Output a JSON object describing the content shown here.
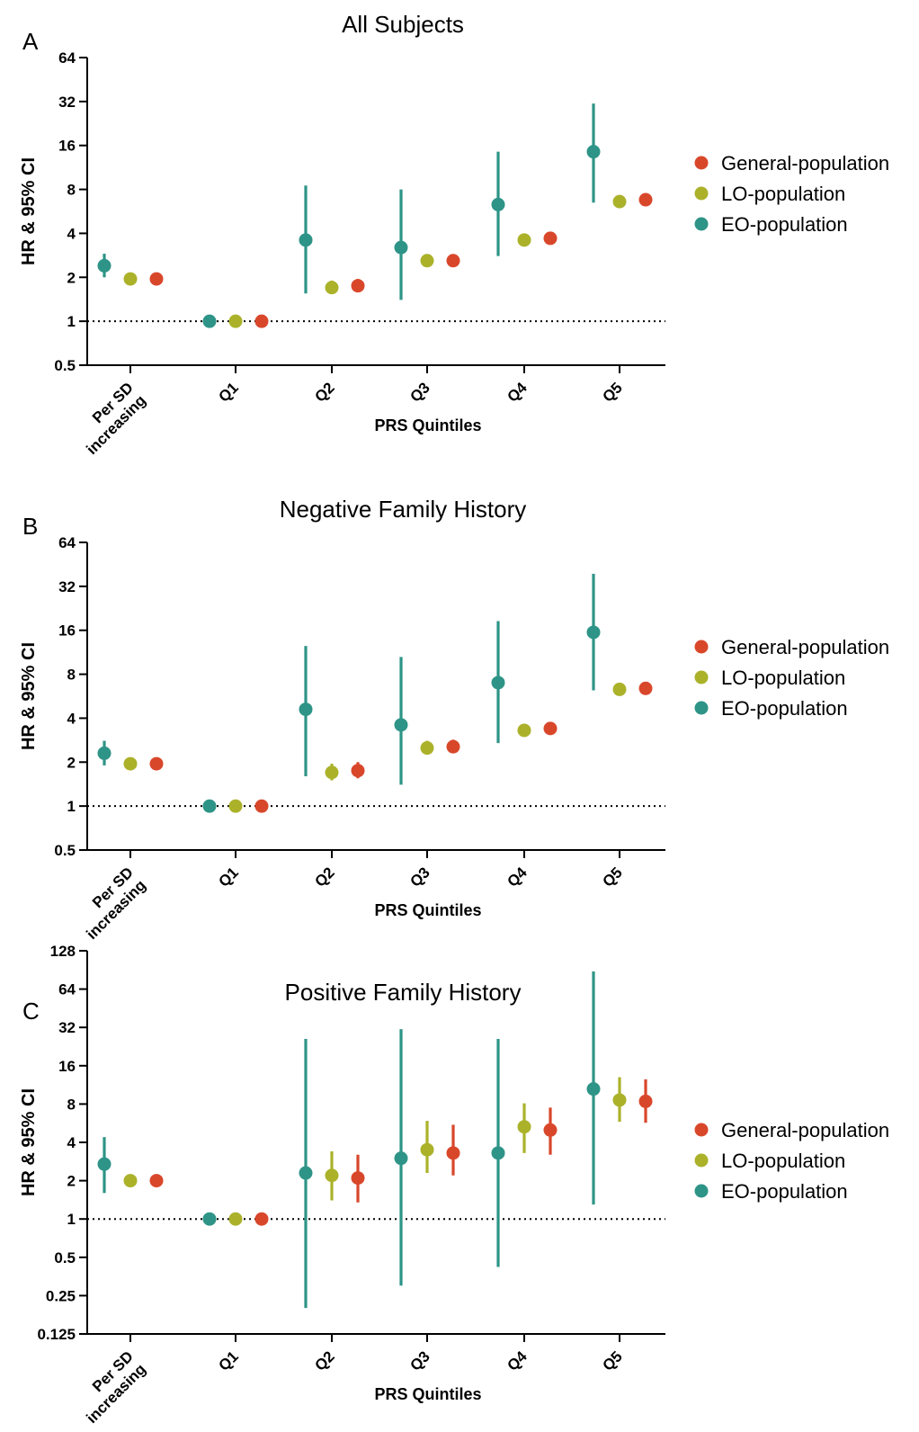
{
  "colors": {
    "General-population": "#d9472b",
    "LO-population": "#abb22a",
    "EO-population": "#2e9487"
  },
  "chart_data": [
    {
      "panel": "A",
      "type": "scatter",
      "title": "All Subjects",
      "xlabel": "PRS Quintiles",
      "ylabel": "HR & 95% CI",
      "yscale": "log2",
      "ylim": [
        0.5,
        64
      ],
      "yticks": [
        "0.5",
        "1",
        "2",
        "4",
        "8",
        "16",
        "32",
        "64"
      ],
      "yticks_values": [
        0.5,
        1,
        2,
        4,
        8,
        16,
        32,
        64
      ],
      "categories": [
        "Per SD increasing",
        "Q1",
        "Q2",
        "Q3",
        "Q4",
        "Q5"
      ],
      "reference_line": 1,
      "legend_position": "right",
      "legend": [
        "General-population",
        "LO-population",
        "EO-population"
      ],
      "series": [
        {
          "name": "EO-population",
          "hr": [
            2.4,
            1,
            3.6,
            3.2,
            6.3,
            14.5
          ],
          "lo": [
            2.0,
            1,
            1.55,
            1.4,
            2.8,
            6.5
          ],
          "hi": [
            2.9,
            1,
            8.5,
            8.0,
            14.5,
            31
          ]
        },
        {
          "name": "LO-population",
          "hr": [
            1.95,
            1,
            1.7,
            2.6,
            3.6,
            6.6
          ],
          "lo": [
            1.9,
            1,
            1.55,
            2.4,
            3.35,
            6.2
          ],
          "hi": [
            2.0,
            1,
            1.9,
            2.85,
            3.9,
            7.1
          ]
        },
        {
          "name": "General-population",
          "hr": [
            1.95,
            1,
            1.75,
            2.6,
            3.7,
            6.8
          ],
          "lo": [
            1.9,
            1,
            1.6,
            2.4,
            3.45,
            6.4
          ],
          "hi": [
            2.0,
            1,
            1.95,
            2.85,
            4.0,
            7.2
          ]
        }
      ]
    },
    {
      "panel": "B",
      "type": "scatter",
      "title": "Negative Family History",
      "xlabel": "PRS Quintiles",
      "ylabel": "HR & 95% CI",
      "yscale": "log2",
      "ylim": [
        0.5,
        64
      ],
      "yticks": [
        "0.5",
        "1",
        "2",
        "4",
        "8",
        "16",
        "32",
        "64"
      ],
      "yticks_values": [
        0.5,
        1,
        2,
        4,
        8,
        16,
        32,
        64
      ],
      "categories": [
        "Per SD increasing",
        "Q1",
        "Q2",
        "Q3",
        "Q4",
        "Q5"
      ],
      "reference_line": 1,
      "legend_position": "right",
      "legend": [
        "General-population",
        "LO-population",
        "EO-population"
      ],
      "series": [
        {
          "name": "EO-population",
          "hr": [
            2.3,
            1,
            4.6,
            3.6,
            7.0,
            15.5
          ],
          "lo": [
            1.9,
            1,
            1.6,
            1.4,
            2.7,
            6.2
          ],
          "hi": [
            2.8,
            1,
            12.5,
            10.5,
            18.5,
            39
          ]
        },
        {
          "name": "LO-population",
          "hr": [
            1.95,
            1,
            1.7,
            2.5,
            3.3,
            6.3
          ],
          "lo": [
            1.9,
            1,
            1.5,
            2.25,
            3.0,
            5.8
          ],
          "hi": [
            2.0,
            1,
            1.95,
            2.8,
            3.65,
            6.8
          ]
        },
        {
          "name": "General-population",
          "hr": [
            1.95,
            1,
            1.75,
            2.55,
            3.4,
            6.4
          ],
          "lo": [
            1.9,
            1,
            1.55,
            2.3,
            3.1,
            5.9
          ],
          "hi": [
            2.0,
            1,
            2.0,
            2.85,
            3.75,
            6.9
          ]
        }
      ]
    },
    {
      "panel": "C",
      "type": "scatter",
      "title": "Positive Family History",
      "xlabel": "PRS Quintiles",
      "ylabel": "HR & 95% CI",
      "yscale": "log2",
      "ylim": [
        0.125,
        128
      ],
      "yticks": [
        "0.125",
        "0.25",
        "0.5",
        "1",
        "2",
        "4",
        "8",
        "16",
        "32",
        "64",
        "128"
      ],
      "yticks_values": [
        0.125,
        0.25,
        0.5,
        1,
        2,
        4,
        8,
        16,
        32,
        64,
        128
      ],
      "categories": [
        "Per SD increasing",
        "Q1",
        "Q2",
        "Q3",
        "Q4",
        "Q5"
      ],
      "reference_line": 1,
      "legend_position": "right",
      "legend": [
        "General-population",
        "LO-population",
        "EO-population"
      ],
      "series": [
        {
          "name": "EO-population",
          "hr": [
            2.7,
            1,
            2.3,
            3.0,
            3.3,
            10.5
          ],
          "lo": [
            1.6,
            1,
            0.2,
            0.3,
            0.42,
            1.3
          ],
          "hi": [
            4.4,
            1,
            26,
            31,
            26,
            88
          ]
        },
        {
          "name": "LO-population",
          "hr": [
            2.0,
            1,
            2.2,
            3.5,
            5.3,
            8.6
          ],
          "lo": [
            1.95,
            1,
            1.4,
            2.3,
            3.3,
            5.8
          ],
          "hi": [
            2.05,
            1,
            3.4,
            5.9,
            8.1,
            13
          ]
        },
        {
          "name": "General-population",
          "hr": [
            2.0,
            1,
            2.1,
            3.3,
            5.0,
            8.4
          ],
          "lo": [
            1.95,
            1,
            1.35,
            2.2,
            3.2,
            5.7
          ],
          "hi": [
            2.05,
            1,
            3.2,
            5.5,
            7.5,
            12.5
          ]
        }
      ]
    }
  ]
}
